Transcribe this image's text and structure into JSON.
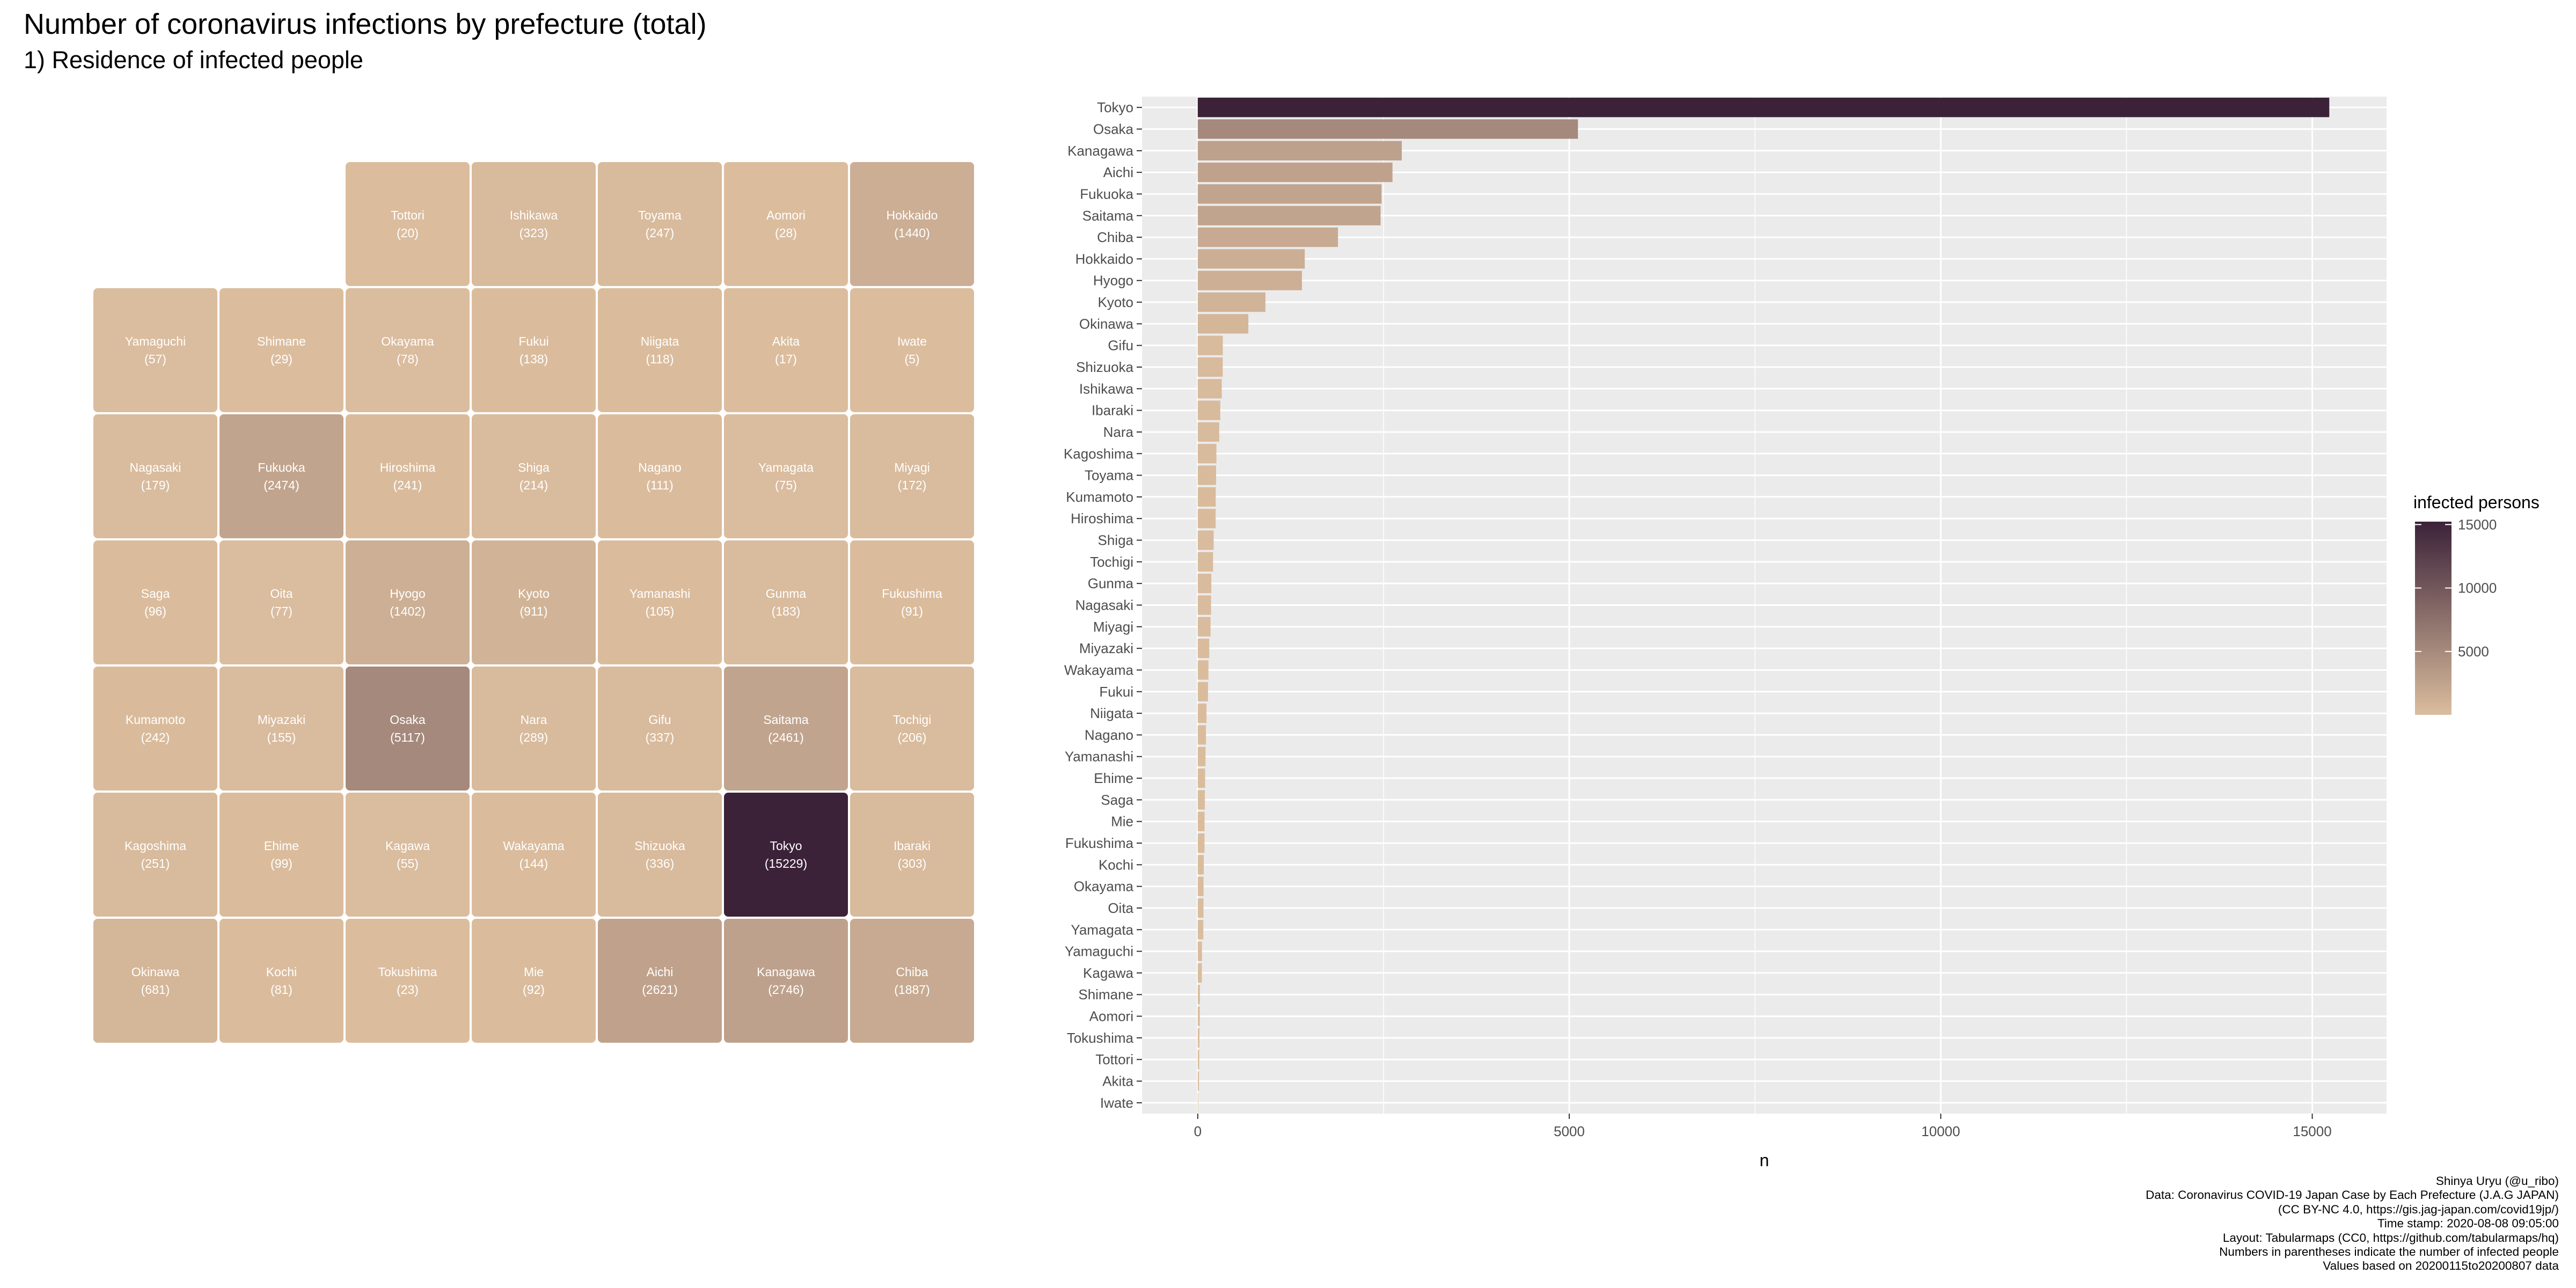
{
  "title": "Number of coronavirus infections by prefecture (total)",
  "subtitle": "1) Residence of infected people",
  "colors": {
    "low": "#dbbd9e",
    "high": "#3b2238",
    "panel_background": "#ebebeb",
    "gridline": "#ffffff"
  },
  "tilemap": {
    "tiles": [
      {
        "name": "Tottori",
        "count": 20,
        "col": 2,
        "row": 0
      },
      {
        "name": "Ishikawa",
        "count": 323,
        "col": 3,
        "row": 0
      },
      {
        "name": "Toyama",
        "count": 247,
        "col": 4,
        "row": 0
      },
      {
        "name": "Aomori",
        "count": 28,
        "col": 5,
        "row": 0
      },
      {
        "name": "Hokkaido",
        "count": 1440,
        "col": 6,
        "row": 0
      },
      {
        "name": "Yamaguchi",
        "count": 57,
        "col": 0,
        "row": 1
      },
      {
        "name": "Shimane",
        "count": 29,
        "col": 1,
        "row": 1
      },
      {
        "name": "Okayama",
        "count": 78,
        "col": 2,
        "row": 1
      },
      {
        "name": "Fukui",
        "count": 138,
        "col": 3,
        "row": 1
      },
      {
        "name": "Niigata",
        "count": 118,
        "col": 4,
        "row": 1
      },
      {
        "name": "Akita",
        "count": 17,
        "col": 5,
        "row": 1
      },
      {
        "name": "Iwate",
        "count": 5,
        "col": 6,
        "row": 1
      },
      {
        "name": "Nagasaki",
        "count": 179,
        "col": 0,
        "row": 2
      },
      {
        "name": "Fukuoka",
        "count": 2474,
        "col": 1,
        "row": 2
      },
      {
        "name": "Hiroshima",
        "count": 241,
        "col": 2,
        "row": 2
      },
      {
        "name": "Shiga",
        "count": 214,
        "col": 3,
        "row": 2
      },
      {
        "name": "Nagano",
        "count": 111,
        "col": 4,
        "row": 2
      },
      {
        "name": "Yamagata",
        "count": 75,
        "col": 5,
        "row": 2
      },
      {
        "name": "Miyagi",
        "count": 172,
        "col": 6,
        "row": 2
      },
      {
        "name": "Saga",
        "count": 96,
        "col": 0,
        "row": 3
      },
      {
        "name": "Oita",
        "count": 77,
        "col": 1,
        "row": 3
      },
      {
        "name": "Hyogo",
        "count": 1402,
        "col": 2,
        "row": 3
      },
      {
        "name": "Kyoto",
        "count": 911,
        "col": 3,
        "row": 3
      },
      {
        "name": "Yamanashi",
        "count": 105,
        "col": 4,
        "row": 3
      },
      {
        "name": "Gunma",
        "count": 183,
        "col": 5,
        "row": 3
      },
      {
        "name": "Fukushima",
        "count": 91,
        "col": 6,
        "row": 3
      },
      {
        "name": "Kumamoto",
        "count": 242,
        "col": 0,
        "row": 4
      },
      {
        "name": "Miyazaki",
        "count": 155,
        "col": 1,
        "row": 4
      },
      {
        "name": "Osaka",
        "count": 5117,
        "col": 2,
        "row": 4
      },
      {
        "name": "Nara",
        "count": 289,
        "col": 3,
        "row": 4
      },
      {
        "name": "Gifu",
        "count": 337,
        "col": 4,
        "row": 4
      },
      {
        "name": "Saitama",
        "count": 2461,
        "col": 5,
        "row": 4
      },
      {
        "name": "Tochigi",
        "count": 206,
        "col": 6,
        "row": 4
      },
      {
        "name": "Kagoshima",
        "count": 251,
        "col": 0,
        "row": 5
      },
      {
        "name": "Ehime",
        "count": 99,
        "col": 1,
        "row": 5
      },
      {
        "name": "Kagawa",
        "count": 55,
        "col": 2,
        "row": 5
      },
      {
        "name": "Wakayama",
        "count": 144,
        "col": 3,
        "row": 5
      },
      {
        "name": "Shizuoka",
        "count": 336,
        "col": 4,
        "row": 5
      },
      {
        "name": "Tokyo",
        "count": 15229,
        "col": 5,
        "row": 5
      },
      {
        "name": "Ibaraki",
        "count": 303,
        "col": 6,
        "row": 5
      },
      {
        "name": "Okinawa",
        "count": 681,
        "col": 0,
        "row": 6
      },
      {
        "name": "Kochi",
        "count": 81,
        "col": 1,
        "row": 6
      },
      {
        "name": "Tokushima",
        "count": 23,
        "col": 2,
        "row": 6
      },
      {
        "name": "Mie",
        "count": 92,
        "col": 3,
        "row": 6
      },
      {
        "name": "Aichi",
        "count": 2621,
        "col": 4,
        "row": 6
      },
      {
        "name": "Kanagawa",
        "count": 2746,
        "col": 5,
        "row": 6
      },
      {
        "name": "Chiba",
        "count": 1887,
        "col": 6,
        "row": 6
      }
    ]
  },
  "chart_data": {
    "type": "bar",
    "orientation": "horizontal",
    "xlabel": "n",
    "ylabel": "",
    "xlim": [
      -750,
      16000
    ],
    "x_ticks": [
      0,
      5000,
      10000,
      15000
    ],
    "grid": true,
    "legend_placement": "right",
    "categories": [
      "Tokyo",
      "Osaka",
      "Kanagawa",
      "Aichi",
      "Fukuoka",
      "Saitama",
      "Chiba",
      "Hokkaido",
      "Hyogo",
      "Kyoto",
      "Okinawa",
      "Gifu",
      "Shizuoka",
      "Ishikawa",
      "Ibaraki",
      "Nara",
      "Kagoshima",
      "Toyama",
      "Kumamoto",
      "Hiroshima",
      "Shiga",
      "Tochigi",
      "Gunma",
      "Nagasaki",
      "Miyagi",
      "Miyazaki",
      "Wakayama",
      "Fukui",
      "Niigata",
      "Nagano",
      "Yamanashi",
      "Ehime",
      "Saga",
      "Mie",
      "Fukushima",
      "Kochi",
      "Okayama",
      "Oita",
      "Yamagata",
      "Yamaguchi",
      "Kagawa",
      "Shimane",
      "Aomori",
      "Tokushima",
      "Tottori",
      "Akita",
      "Iwate"
    ],
    "values": [
      15229,
      5117,
      2746,
      2621,
      2474,
      2461,
      1887,
      1440,
      1402,
      911,
      681,
      337,
      336,
      323,
      303,
      289,
      251,
      247,
      242,
      241,
      214,
      206,
      183,
      179,
      172,
      155,
      144,
      138,
      118,
      111,
      105,
      99,
      96,
      92,
      91,
      81,
      78,
      77,
      75,
      57,
      55,
      29,
      28,
      23,
      20,
      17,
      5
    ],
    "legend": {
      "title": "infected persons",
      "ticks": [
        5000,
        10000,
        15000
      ],
      "range": [
        5,
        15229
      ]
    }
  },
  "caption": [
    "Shinya Uryu (@u_ribo)",
    "Data: Coronavirus COVID-19 Japan Case by Each Prefecture (J.A.G JAPAN)",
    "(CC BY-NC 4.0, https://gis.jag-japan.com/covid19jp/)",
    "Time stamp: 2020-08-08 09:05:00",
    "Layout: Tabularmaps (CC0, https://github.com/tabularmaps/hq)",
    "Numbers in parentheses indicate the number of infected people",
    "Values based on 20200115to20200807 data"
  ]
}
